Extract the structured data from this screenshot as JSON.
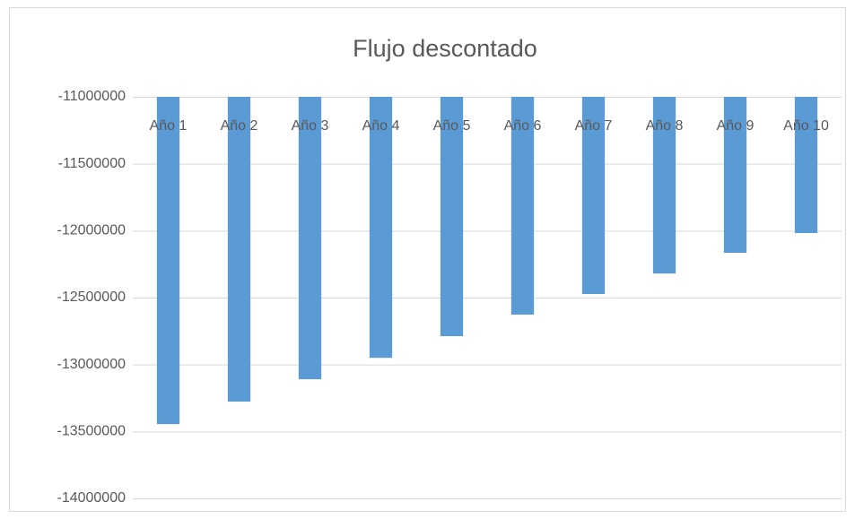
{
  "chart_data": {
    "type": "bar",
    "title": "Flujo descontado",
    "categories": [
      "Año 1",
      "Año 2",
      "Año 3",
      "Año 4",
      "Año 5",
      "Año 6",
      "Año 7",
      "Año 8",
      "Año 9",
      "Año 10"
    ],
    "values": [
      -13445000,
      -13277000,
      -13110000,
      -12950000,
      -12788000,
      -12627000,
      -12473000,
      -12320000,
      -12165000,
      -12018000
    ],
    "color": "#5b9bd5",
    "ylim": [
      -14000000,
      -11000000
    ],
    "yticks": [
      -14000000,
      -13500000,
      -13000000,
      -12500000,
      -12000000,
      -11500000,
      -11000000
    ],
    "grid": true
  }
}
